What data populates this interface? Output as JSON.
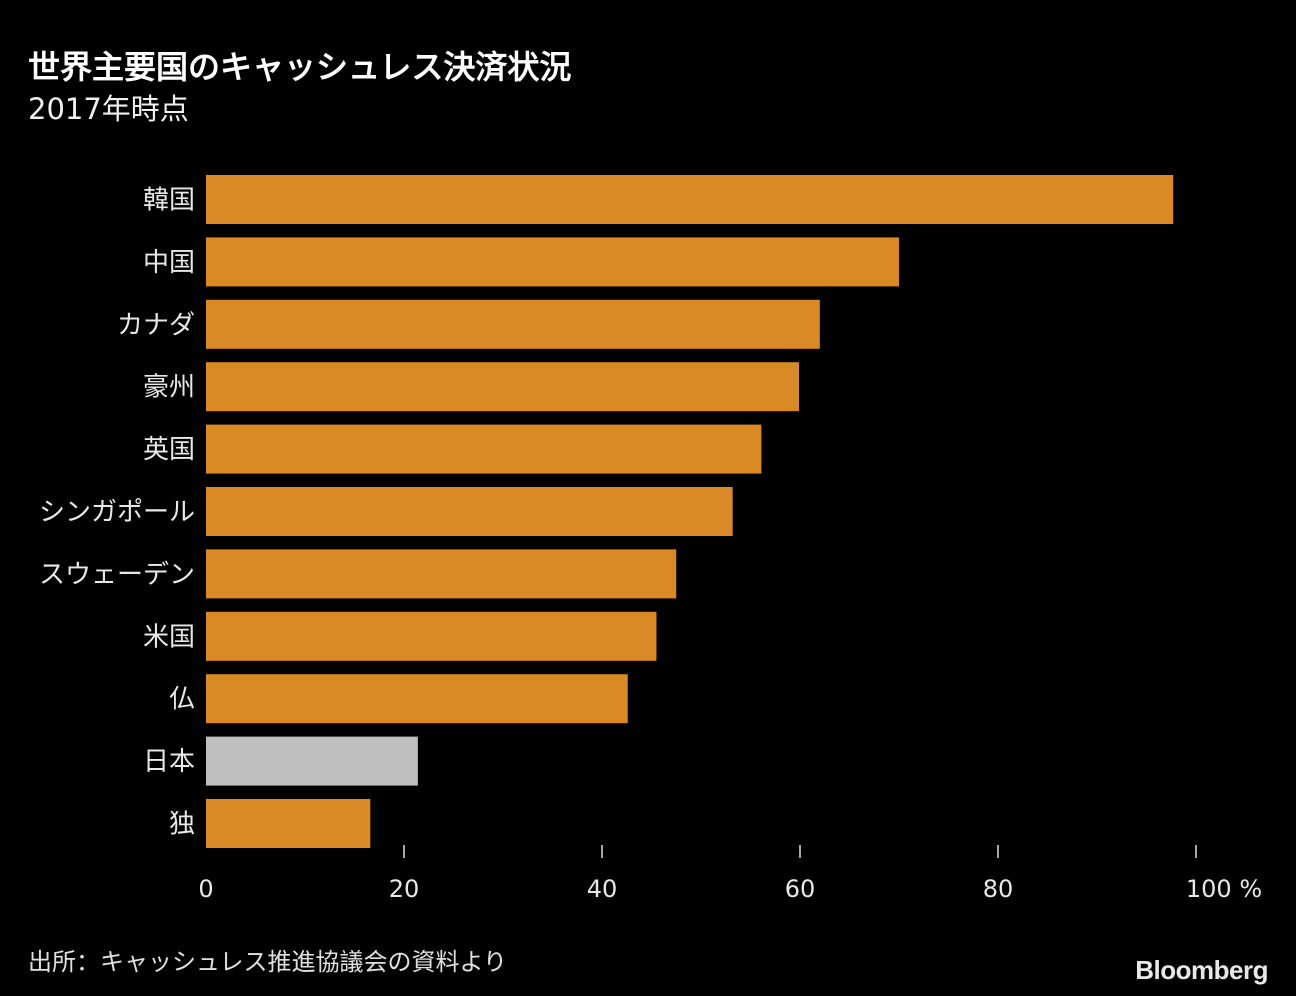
{
  "chart_data": {
    "type": "bar",
    "orientation": "horizontal",
    "title": "世界主要国のキャッシュレス決済状況",
    "subtitle": "2017年時点",
    "categories": [
      "韓国",
      "中国",
      "カナダ",
      "豪州",
      "英国",
      "シンガポール",
      "スウェーデン",
      "米国",
      "仏",
      "日本",
      "独"
    ],
    "values": [
      97.7,
      70.0,
      62.0,
      59.9,
      56.1,
      53.2,
      47.5,
      45.5,
      42.6,
      21.4,
      16.6
    ],
    "highlight": "日本",
    "xlim": [
      0,
      100
    ],
    "xticks": [
      0,
      20,
      40,
      60,
      80,
      100
    ],
    "xtick_labels": [
      "0",
      "20",
      "40",
      "60",
      "80",
      "100 %"
    ],
    "unit": "%",
    "grid": false,
    "colors": {
      "bar": "#d98a24",
      "highlight": "#bfbfbf",
      "background": "#000000"
    }
  },
  "source": "出所：キャッシュレス推進協議会の資料より",
  "logo": "Bloomberg"
}
